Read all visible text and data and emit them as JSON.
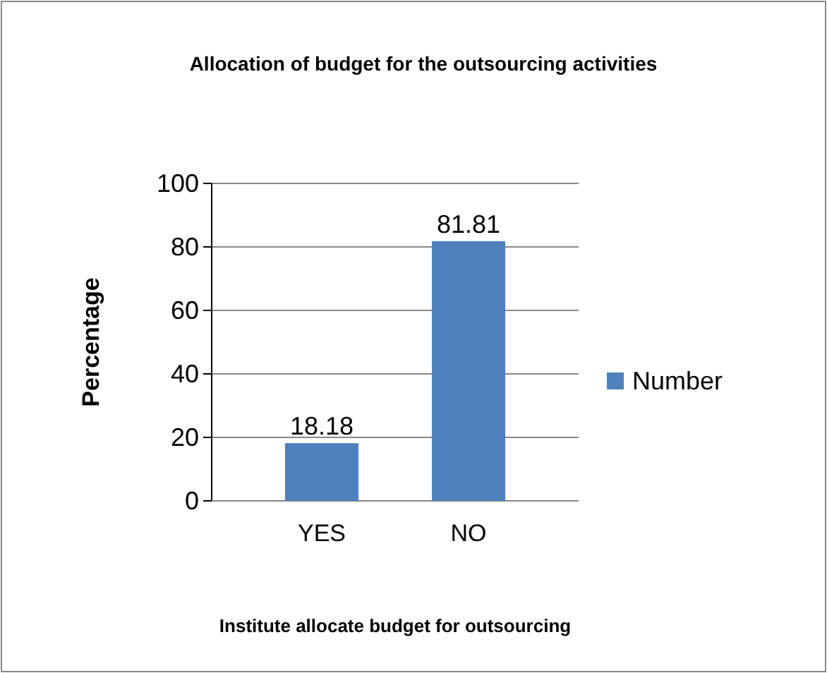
{
  "chart_data": {
    "type": "bar",
    "title": "Allocation of budget for the outsourcing activities",
    "xlabel": "Institute allocate budget for outsourcing",
    "ylabel": "Percentage",
    "categories": [
      "YES",
      "NO"
    ],
    "series": [
      {
        "name": "Number",
        "color": "#4f81bd",
        "values": [
          18.18,
          81.81
        ]
      }
    ],
    "ylim": [
      0,
      100
    ],
    "yticks": [
      0,
      20,
      40,
      60,
      80,
      100
    ],
    "grid": "y",
    "legend": "right",
    "data_labels": true
  }
}
